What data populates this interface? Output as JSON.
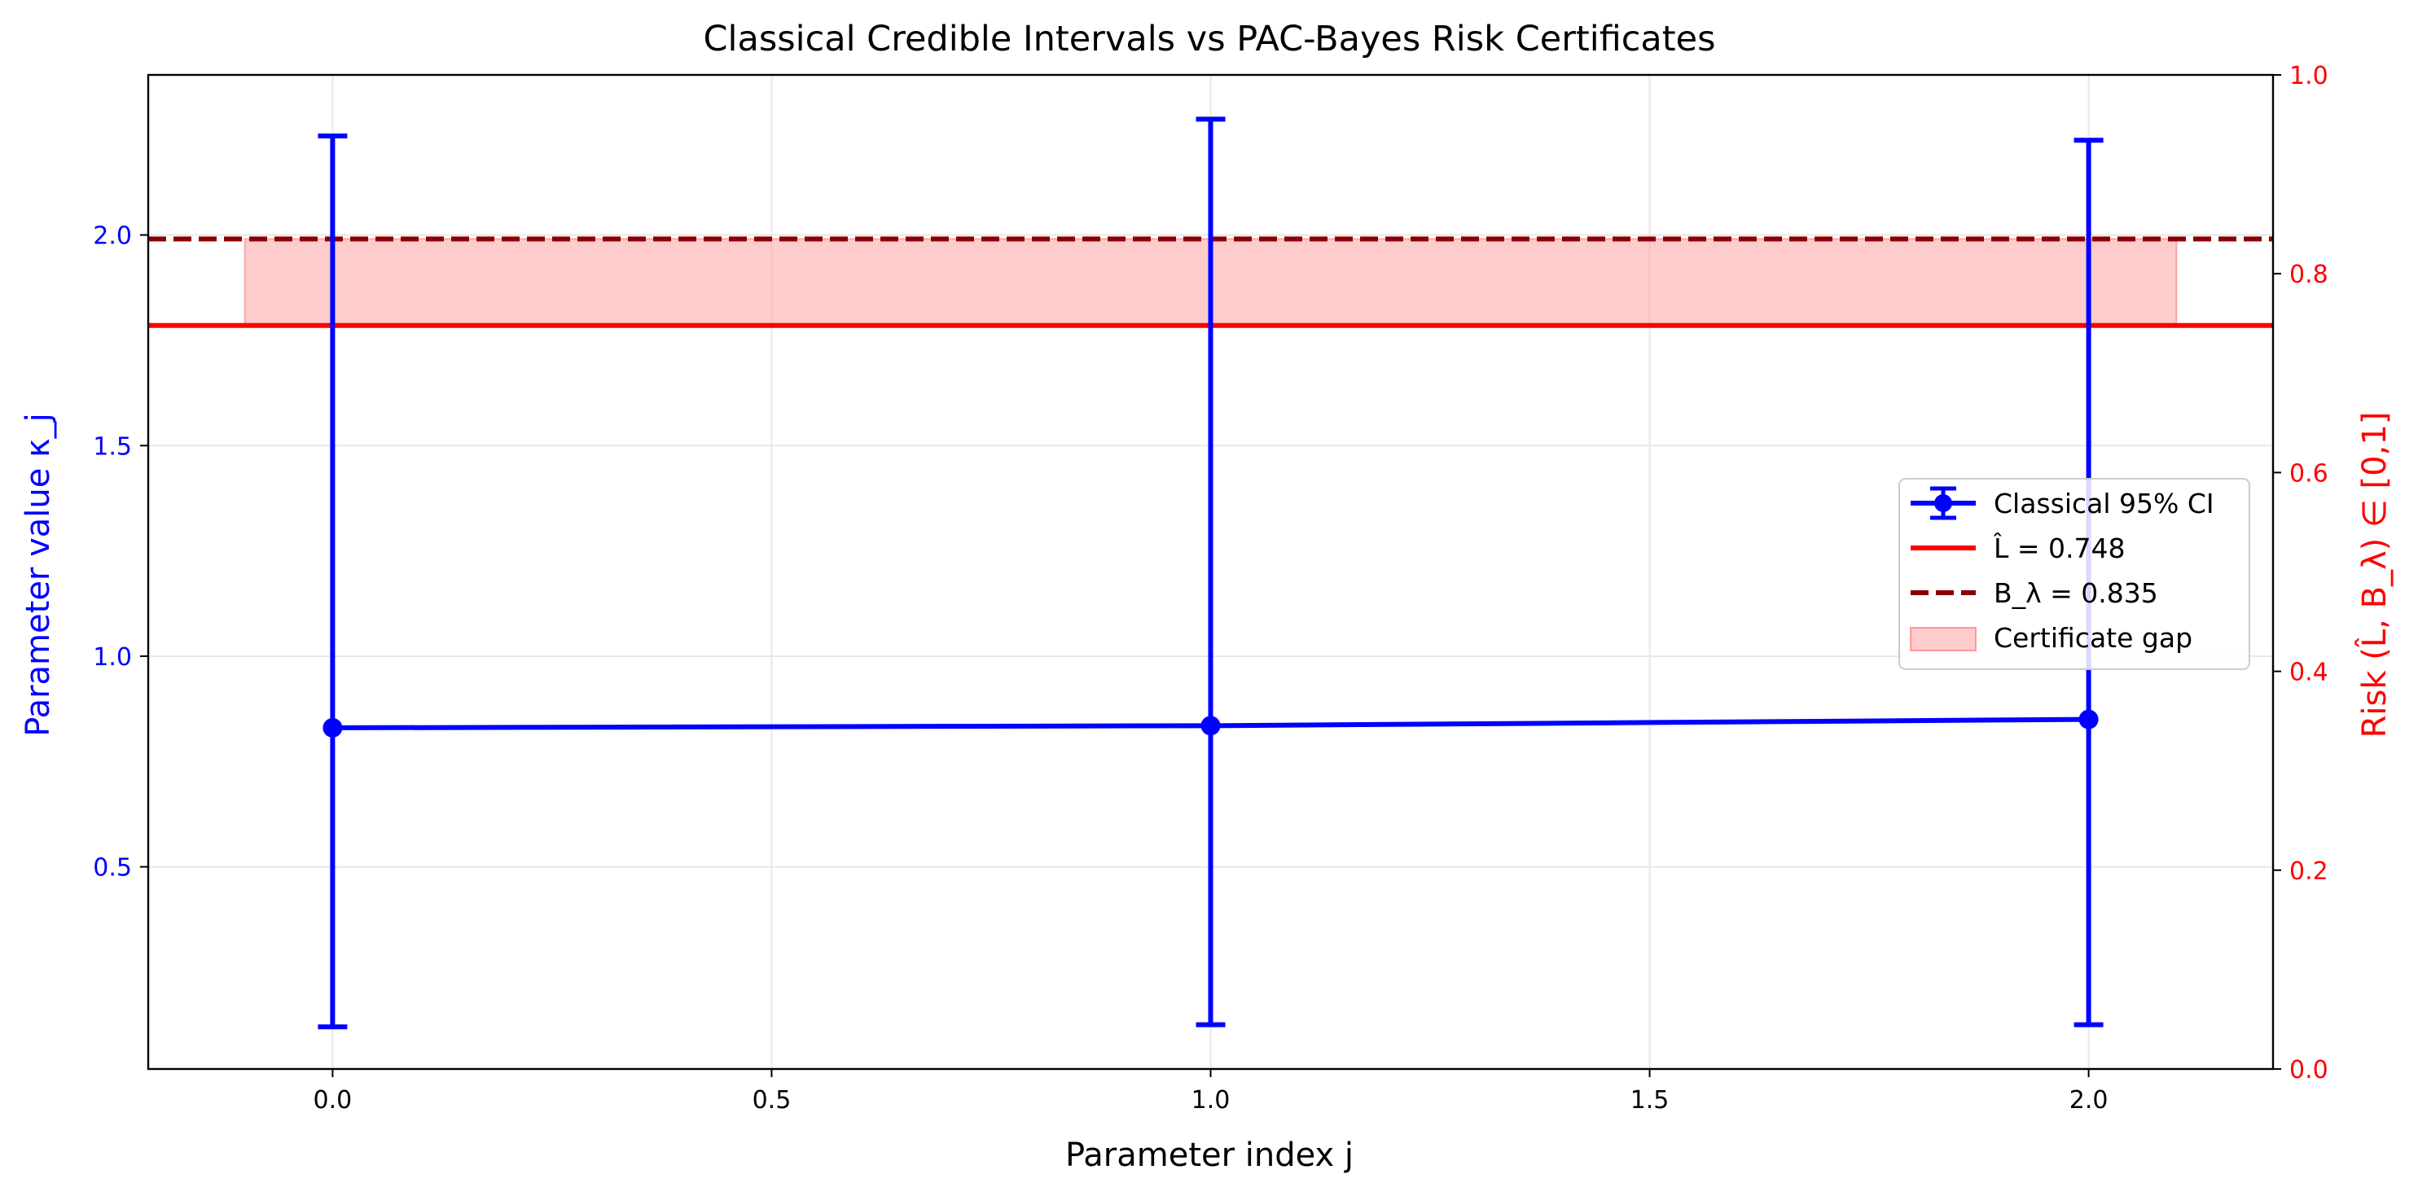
{
  "chart_data": {
    "type": "line",
    "title": "Classical Credible Intervals vs PAC-Bayes Risk Certificates",
    "xlabel": "Parameter index j",
    "ylabel_left": "Parameter value κ_j",
    "ylabel_right": "Risk (L̂, B_λ) ∈ [0,1]",
    "xlim": [
      -0.21,
      2.21
    ],
    "ylim_left": [
      0.02,
      2.38
    ],
    "ylim_right": [
      0.0,
      1.0
    ],
    "x_ticks": [
      "0.0",
      "0.5",
      "1.0",
      "1.5",
      "2.0"
    ],
    "x_tick_values": [
      0,
      0.5,
      1.0,
      1.5,
      2.0
    ],
    "y_left_ticks": [
      "0.5",
      "1.0",
      "1.5",
      "2.0"
    ],
    "y_left_tick_values": [
      0.5,
      1.0,
      1.5,
      2.0
    ],
    "y_right_ticks": [
      "0.0",
      "0.2",
      "0.4",
      "0.6",
      "0.8",
      "1.0"
    ],
    "y_right_tick_values": [
      0.0,
      0.2,
      0.4,
      0.6,
      0.8,
      1.0
    ],
    "grid": true,
    "legend_position": "center-right",
    "series": [
      {
        "name": "Classical 95% CI",
        "axis": "left",
        "style": "errorbar-line",
        "color": "#0000ff",
        "x": [
          0,
          1,
          2
        ],
        "y": [
          0.83,
          0.835,
          0.85
        ],
        "ci_lower": [
          0.12,
          0.125,
          0.125
        ],
        "ci_upper": [
          2.235,
          2.275,
          2.225
        ]
      },
      {
        "name": "L̂ = 0.748",
        "axis": "right",
        "style": "hline-solid",
        "color": "#ff0000",
        "y": 0.748
      },
      {
        "name": "B_λ = 0.835",
        "axis": "right",
        "style": "hline-dashed",
        "color": "#8b0000",
        "y": 0.835
      },
      {
        "name": "Certificate gap",
        "axis": "right",
        "style": "band",
        "color": "#ff9999",
        "x_range": [
          -0.1,
          2.1
        ],
        "y_range": [
          0.748,
          0.835
        ]
      }
    ],
    "colors": {
      "left_axis": "#0000ff",
      "right_axis": "#ff0000",
      "grid": "#e8e8e8"
    }
  }
}
